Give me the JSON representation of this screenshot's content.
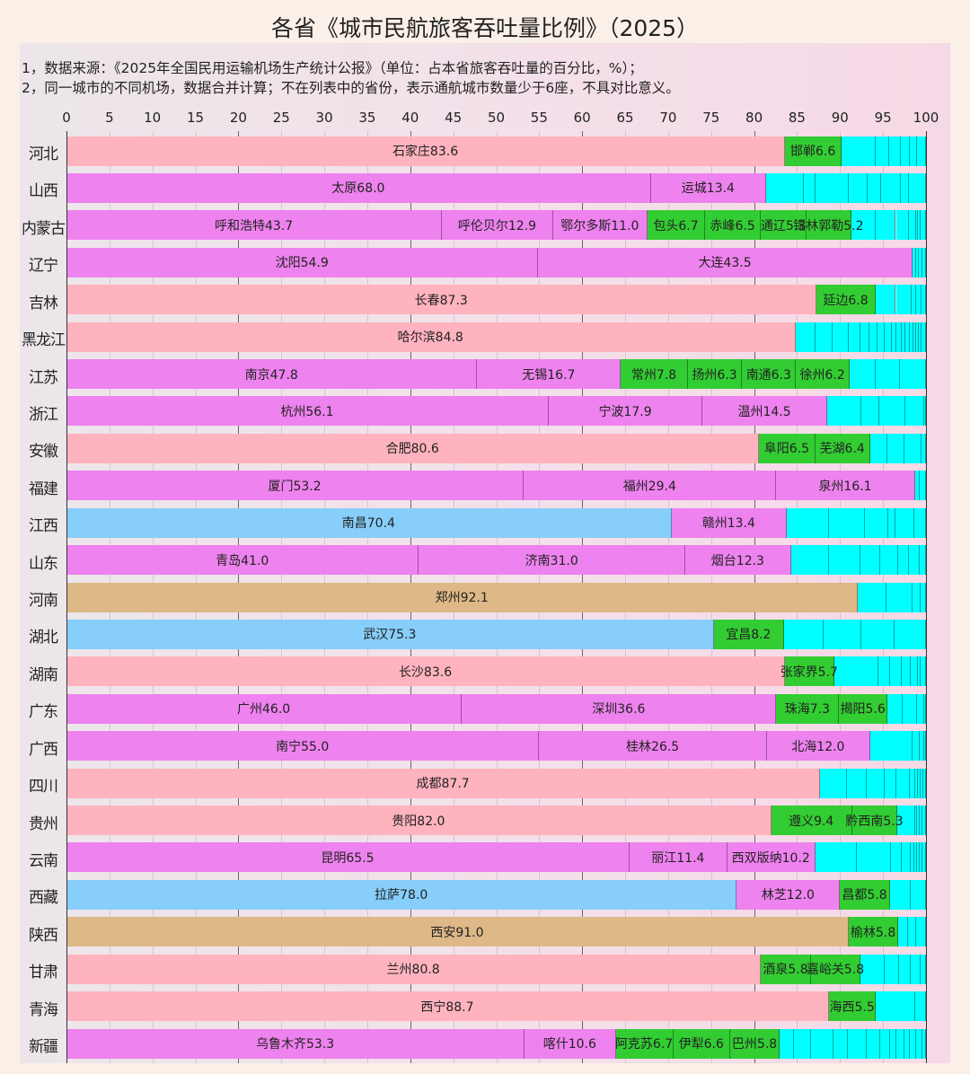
{
  "title": "各省《城市民航旅客吞吐量比例》（2025）",
  "notes": [
    "1，数据来源：《2025年全国民用运输机场生产统计公报》（单位：占本省旅客吞吐量的百分比，%）；",
    "2，同一城市的不同机场，数据合并计算；不在列表中的省份，表示通航城市数量少于6座，不具对比意义。"
  ],
  "colors": {
    "pink": "#FFB3BE",
    "magenta": "#EE82EE",
    "blue": "#87CEFA",
    "tan": "#DEB887",
    "green": "#32CD32",
    "cyan": "#00FFFF"
  },
  "chart_data": {
    "type": "bar",
    "orientation": "horizontal-stacked-100",
    "title": "各省《城市民航旅客吞吐量比例》（2025）",
    "xlabel": "",
    "ylabel": "",
    "xlim": [
      0,
      100
    ],
    "xticks": [
      0,
      5,
      10,
      15,
      20,
      25,
      30,
      35,
      40,
      45,
      50,
      55,
      60,
      65,
      70,
      75,
      80,
      85,
      90,
      95,
      100
    ],
    "grid": true,
    "categories": [
      "河北",
      "山西",
      "内蒙古",
      "辽宁",
      "吉林",
      "黑龙江",
      "江苏",
      "浙江",
      "安徽",
      "福建",
      "江西",
      "山东",
      "河南",
      "湖北",
      "湖南",
      "广东",
      "广西",
      "四川",
      "贵州",
      "云南",
      "西藏",
      "陕西",
      "甘肃",
      "青海",
      "新疆"
    ],
    "rows": [
      {
        "province": "河北",
        "segments": [
          {
            "city": "石家庄",
            "value": 83.6,
            "color": "pink"
          },
          {
            "city": "邯郸",
            "value": 6.6,
            "color": "green"
          }
        ],
        "others_splits": [
          4.0,
          1.5,
          1.4,
          1.0,
          0.9,
          1.0
        ]
      },
      {
        "province": "山西",
        "segments": [
          {
            "city": "太原",
            "value": 68.0,
            "color": "magenta"
          },
          {
            "city": "运城",
            "value": 13.4,
            "color": "magenta"
          }
        ],
        "others_splits": [
          4.4,
          1.3,
          3.9,
          2.2,
          1.6,
          2.3,
          0.9,
          2.0
        ]
      },
      {
        "province": "内蒙古",
        "segments": [
          {
            "city": "呼和浩特",
            "value": 43.7,
            "color": "magenta"
          },
          {
            "city": "呼伦贝尔",
            "value": 12.9,
            "color": "magenta"
          },
          {
            "city": "鄂尔多斯",
            "value": 11.0,
            "color": "magenta"
          },
          {
            "city": "包头",
            "value": 6.7,
            "color": "green"
          },
          {
            "city": "赤峰",
            "value": 6.5,
            "color": "green"
          },
          {
            "city": "通辽",
            "value": 5.3,
            "color": "green"
          },
          {
            "city": "锡林郭勒",
            "value": 5.2,
            "color": "green"
          }
        ],
        "others_splits": [
          2.8,
          2.4,
          1.5,
          0.8,
          0.3,
          0.3,
          0.6
        ]
      },
      {
        "province": "辽宁",
        "segments": [
          {
            "city": "沈阳",
            "value": 54.9,
            "color": "magenta"
          },
          {
            "city": "大连",
            "value": 43.5,
            "color": "magenta"
          }
        ],
        "others_splits": [
          0.4,
          0.4,
          0.4,
          0.4
        ]
      },
      {
        "province": "吉林",
        "segments": [
          {
            "city": "长春",
            "value": 87.3,
            "color": "pink"
          },
          {
            "city": "延边",
            "value": 6.8,
            "color": "green"
          }
        ],
        "others_splits": [
          2.4,
          1.8,
          0.6,
          0.6,
          0.5
        ]
      },
      {
        "province": "黑龙江",
        "segments": [
          {
            "city": "哈尔滨",
            "value": 84.8,
            "color": "pink"
          }
        ],
        "others_splits": [
          2.3,
          2.0,
          1.9,
          1.4,
          1.0,
          1.0,
          0.8,
          0.8,
          0.6,
          0.6,
          0.4,
          0.5,
          0.4,
          0.3,
          0.4,
          0.3,
          0.5
        ]
      },
      {
        "province": "江苏",
        "segments": [
          {
            "city": "南京",
            "value": 47.8,
            "color": "magenta"
          },
          {
            "city": "无锡",
            "value": 16.7,
            "color": "magenta"
          },
          {
            "city": "常州",
            "value": 7.8,
            "color": "green"
          },
          {
            "city": "扬州",
            "value": 6.3,
            "color": "green"
          },
          {
            "city": "南通",
            "value": 6.3,
            "color": "green"
          },
          {
            "city": "徐州",
            "value": 6.2,
            "color": "green"
          }
        ],
        "others_splits": [
          3.0,
          2.9,
          3.0
        ]
      },
      {
        "province": "浙江",
        "segments": [
          {
            "city": "杭州",
            "value": 56.1,
            "color": "magenta"
          },
          {
            "city": "宁波",
            "value": 17.9,
            "color": "magenta"
          },
          {
            "city": "温州",
            "value": 14.5,
            "color": "magenta"
          }
        ],
        "others_splits": [
          4.0,
          2.1,
          3.0,
          2.2,
          0.2
        ]
      },
      {
        "province": "安徽",
        "segments": [
          {
            "city": "合肥",
            "value": 80.6,
            "color": "pink"
          },
          {
            "city": "阜阳",
            "value": 6.5,
            "color": "green"
          },
          {
            "city": "芜湖",
            "value": 6.4,
            "color": "green"
          }
        ],
        "others_splits": [
          2.0,
          2.0,
          2.0,
          0.5
        ]
      },
      {
        "province": "福建",
        "segments": [
          {
            "city": "厦门",
            "value": 53.2,
            "color": "magenta"
          },
          {
            "city": "福州",
            "value": 29.4,
            "color": "magenta"
          },
          {
            "city": "泉州",
            "value": 16.1,
            "color": "magenta"
          }
        ],
        "others_splits": [
          0.6,
          0.7
        ]
      },
      {
        "province": "江西",
        "segments": [
          {
            "city": "南昌",
            "value": 70.4,
            "color": "blue"
          },
          {
            "city": "赣州",
            "value": 13.4,
            "color": "magenta"
          }
        ],
        "others_splits": [
          4.9,
          4.2,
          2.7,
          0.8,
          2.2,
          1.4
        ]
      },
      {
        "province": "山东",
        "segments": [
          {
            "city": "青岛",
            "value": 41.0,
            "color": "magenta"
          },
          {
            "city": "济南",
            "value": 31.0,
            "color": "magenta"
          },
          {
            "city": "烟台",
            "value": 12.3,
            "color": "magenta"
          }
        ],
        "others_splits": [
          4.4,
          3.7,
          2.3,
          2.1,
          1.2,
          1.3,
          0.7
        ]
      },
      {
        "province": "河南",
        "segments": [
          {
            "city": "郑州",
            "value": 92.1,
            "color": "tan"
          }
        ],
        "others_splits": [
          3.3,
          3.0,
          1.0,
          0.6
        ]
      },
      {
        "province": "湖北",
        "segments": [
          {
            "city": "武汉",
            "value": 75.3,
            "color": "blue"
          },
          {
            "city": "宜昌",
            "value": 8.2,
            "color": "green"
          }
        ],
        "others_splits": [
          4.6,
          4.4,
          3.8,
          3.7
        ]
      },
      {
        "province": "湖南",
        "segments": [
          {
            "city": "长沙",
            "value": 83.6,
            "color": "pink"
          },
          {
            "city": "张家界",
            "value": 5.7,
            "color": "green"
          }
        ],
        "others_splits": [
          5.2,
          1.3,
          1.4,
          1.0,
          0.9,
          0.3,
          0.6
        ]
      },
      {
        "province": "广东",
        "segments": [
          {
            "city": "广州",
            "value": 46.0,
            "color": "magenta"
          },
          {
            "city": "深圳",
            "value": 36.6,
            "color": "magenta"
          },
          {
            "city": "珠海",
            "value": 7.3,
            "color": "green"
          },
          {
            "city": "揭阳",
            "value": 5.6,
            "color": "green"
          }
        ],
        "others_splits": [
          1.8,
          1.7,
          0.8,
          0.2
        ]
      },
      {
        "province": "广西",
        "segments": [
          {
            "city": "南宁",
            "value": 55.0,
            "color": "magenta"
          },
          {
            "city": "桂林",
            "value": 26.5,
            "color": "magenta"
          },
          {
            "city": "北海",
            "value": 12.0,
            "color": "magenta"
          }
        ],
        "others_splits": [
          4.9,
          0.9,
          0.5,
          0.2
        ]
      },
      {
        "province": "四川",
        "segments": [
          {
            "city": "成都",
            "value": 87.7,
            "color": "pink"
          }
        ],
        "others_splits": [
          3.1,
          2.3,
          2.1,
          1.3,
          1.6,
          0.6,
          0.4,
          0.3,
          0.3,
          0.3
        ]
      },
      {
        "province": "贵州",
        "segments": [
          {
            "city": "贵阳",
            "value": 82.0,
            "color": "pink"
          },
          {
            "city": "遵义",
            "value": 9.4,
            "color": "green"
          },
          {
            "city": "黔西南",
            "value": 5.3,
            "color": "green"
          }
        ],
        "others_splits": [
          2.0,
          0.3,
          0.3,
          0.3,
          0.4
        ]
      },
      {
        "province": "云南",
        "segments": [
          {
            "city": "昆明",
            "value": 65.5,
            "color": "magenta"
          },
          {
            "city": "丽江",
            "value": 11.4,
            "color": "magenta"
          },
          {
            "city": "西双版纳",
            "value": 10.2,
            "color": "magenta"
          }
        ],
        "others_splits": [
          4.9,
          3.9,
          1.3,
          1.0,
          0.4,
          0.4,
          0.3,
          0.3,
          0.4
        ]
      },
      {
        "province": "西藏",
        "segments": [
          {
            "city": "拉萨",
            "value": 78.0,
            "color": "blue"
          },
          {
            "city": "林芝",
            "value": 12.0,
            "color": "magenta"
          },
          {
            "city": "昌都",
            "value": 5.8,
            "color": "green"
          }
        ],
        "others_splits": [
          2.4,
          1.8
        ]
      },
      {
        "province": "陕西",
        "segments": [
          {
            "city": "西安",
            "value": 91.0,
            "color": "tan"
          },
          {
            "city": "榆林",
            "value": 5.8,
            "color": "green"
          }
        ],
        "others_splits": [
          1.1,
          0.9,
          1.2
        ]
      },
      {
        "province": "甘肃",
        "segments": [
          {
            "city": "兰州",
            "value": 80.8,
            "color": "pink"
          },
          {
            "city": "酒泉",
            "value": 5.8,
            "color": "green"
          },
          {
            "city": "嘉峪关",
            "value": 5.8,
            "color": "green"
          }
        ],
        "others_splits": [
          2.8,
          1.7,
          1.3,
          1.2,
          0.6
        ]
      },
      {
        "province": "青海",
        "segments": [
          {
            "city": "西宁",
            "value": 88.7,
            "color": "pink"
          },
          {
            "city": "海西",
            "value": 5.5,
            "color": "green"
          }
        ],
        "others_splits": [
          4.5,
          1.3
        ]
      },
      {
        "province": "新疆",
        "segments": [
          {
            "city": "乌鲁木齐",
            "value": 53.3,
            "color": "magenta"
          },
          {
            "city": "喀什",
            "value": 10.6,
            "color": "magenta"
          },
          {
            "city": "阿克苏",
            "value": 6.7,
            "color": "green"
          },
          {
            "city": "伊犁",
            "value": 6.6,
            "color": "green"
          },
          {
            "city": "巴州",
            "value": 5.8,
            "color": "green"
          }
        ],
        "others_splits": [
          1.8,
          2.2,
          2.8,
          1.8,
          2.4,
          1.7,
          1.3,
          0.8,
          1.0,
          0.7,
          0.8,
          0.7,
          0.5
        ]
      }
    ],
    "legend": null
  }
}
